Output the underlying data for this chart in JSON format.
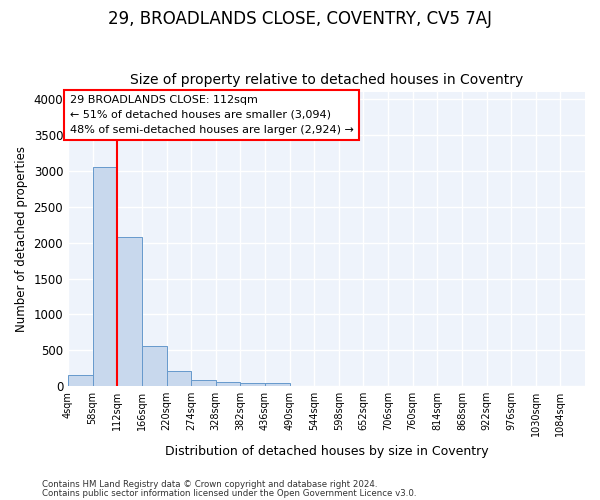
{
  "title1": "29, BROADLANDS CLOSE, COVENTRY, CV5 7AJ",
  "title2": "Size of property relative to detached houses in Coventry",
  "xlabel": "Distribution of detached houses by size in Coventry",
  "ylabel": "Number of detached properties",
  "bin_edges": [
    4,
    58,
    112,
    166,
    220,
    274,
    328,
    382,
    436,
    490,
    544,
    598,
    652,
    706,
    760,
    814,
    868,
    922,
    976,
    1030,
    1084
  ],
  "bar_heights": [
    150,
    3060,
    2080,
    555,
    210,
    80,
    55,
    45,
    45,
    0,
    0,
    0,
    0,
    0,
    0,
    0,
    0,
    0,
    0,
    0
  ],
  "bar_color": "#c8d8ed",
  "bar_edge_color": "#6699cc",
  "red_line_x": 112,
  "annotation_text": "29 BROADLANDS CLOSE: 112sqm\n← 51% of detached houses are smaller (3,094)\n48% of semi-detached houses are larger (2,924) →",
  "ylim": [
    0,
    4100
  ],
  "xlim": [
    4,
    1138
  ],
  "footer1": "Contains HM Land Registry data © Crown copyright and database right 2024.",
  "footer2": "Contains public sector information licensed under the Open Government Licence v3.0.",
  "bg_color": "#ffffff",
  "plot_bg_color": "#eef3fb",
  "title1_fontsize": 12,
  "title2_fontsize": 10,
  "yticks": [
    0,
    500,
    1000,
    1500,
    2000,
    2500,
    3000,
    3500,
    4000
  ],
  "tick_labels": [
    "4sqm",
    "58sqm",
    "112sqm",
    "166sqm",
    "220sqm",
    "274sqm",
    "328sqm",
    "382sqm",
    "436sqm",
    "490sqm",
    "544sqm",
    "598sqm",
    "652sqm",
    "706sqm",
    "760sqm",
    "814sqm",
    "868sqm",
    "922sqm",
    "976sqm",
    "1030sqm",
    "1084sqm"
  ]
}
